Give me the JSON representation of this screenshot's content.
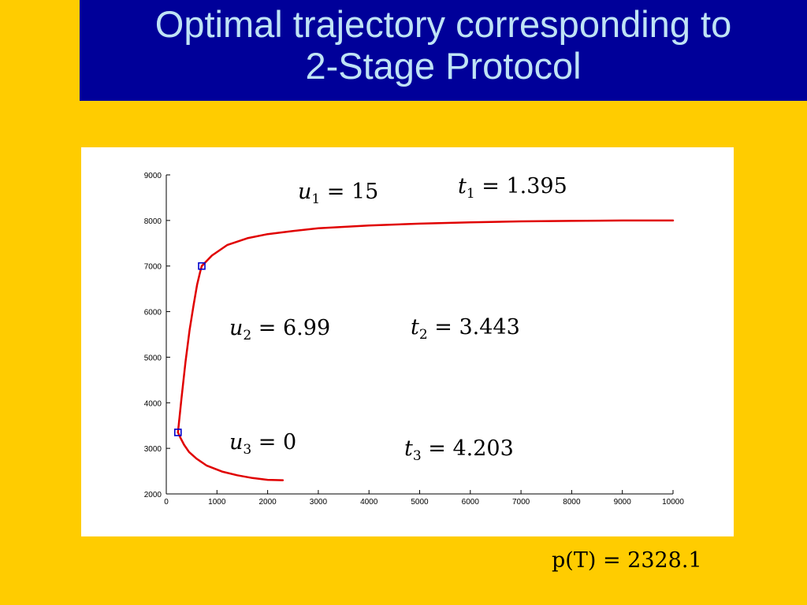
{
  "title": {
    "line1": "Optimal trajectory corresponding to",
    "line2": "2-Stage Protocol"
  },
  "footer": {
    "p_T": "p(T) = 2328.1"
  },
  "annotations": [
    {
      "var": "u",
      "sub": "1",
      "rest": " = 15"
    },
    {
      "var": "t",
      "sub": "1",
      "rest": " = 1.395"
    },
    {
      "var": "u",
      "sub": "2",
      "rest": " = 6.99"
    },
    {
      "var": "t",
      "sub": "2",
      "rest": " = 3.443"
    },
    {
      "var": "u",
      "sub": "3",
      "rest": " = 0"
    },
    {
      "var": "t",
      "sub": "3",
      "rest": " = 4.203"
    }
  ],
  "colors": {
    "background": "#ffcc00",
    "title_bar": "#000099",
    "title_text": "#bfe3f5",
    "curve": "#e00000",
    "switch_marker": "#0000cc"
  },
  "chart_data": {
    "type": "line",
    "title": "",
    "xlabel": "",
    "ylabel": "",
    "xlim": [
      0,
      10000
    ],
    "ylim": [
      2000,
      9000
    ],
    "xticks": [
      0,
      1000,
      2000,
      3000,
      4000,
      5000,
      6000,
      7000,
      8000,
      9000,
      10000
    ],
    "yticks": [
      2000,
      3000,
      4000,
      5000,
      6000,
      7000,
      8000,
      9000
    ],
    "grid": false,
    "series": [
      {
        "x": [
          2300,
          2000,
          1700,
          1400,
          1100,
          800,
          600,
          450,
          350,
          280,
          230
        ],
        "y": [
          2300,
          2310,
          2350,
          2410,
          2490,
          2620,
          2770,
          2920,
          3080,
          3230,
          3350
        ]
      },
      {
        "x": [
          230,
          300,
          380,
          460,
          540,
          610,
          670,
          700
        ],
        "y": [
          3350,
          4100,
          4900,
          5600,
          6150,
          6600,
          6880,
          7000
        ]
      },
      {
        "x": [
          700,
          900,
          1200,
          1600,
          2000,
          2500,
          3000,
          4000,
          5000,
          6000,
          7000,
          8000,
          9000,
          10000
        ],
        "y": [
          7000,
          7230,
          7460,
          7610,
          7700,
          7770,
          7830,
          7890,
          7930,
          7960,
          7980,
          7990,
          8000,
          8000
        ]
      }
    ],
    "switch_points": [
      {
        "x": 230,
        "y": 3350
      },
      {
        "x": 700,
        "y": 7000
      }
    ]
  }
}
